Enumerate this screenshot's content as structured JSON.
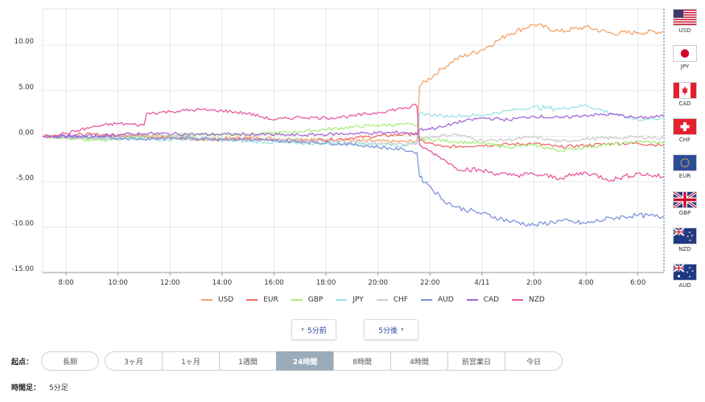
{
  "chart_data": {
    "type": "line",
    "y_ticks": [
      "10.00",
      "5.00",
      "0.00",
      "-5.00",
      "-10.00",
      "-15.00"
    ],
    "ylim": [
      -15,
      14
    ],
    "x_ticks": [
      "8:00",
      "10:00",
      "12:00",
      "14:00",
      "16:00",
      "18:00",
      "20:00",
      "22:00",
      "4/11",
      "2:00",
      "4:00",
      "6:00"
    ],
    "x_tick_hours": [
      8,
      10,
      12,
      14,
      16,
      18,
      20,
      22,
      24,
      26,
      28,
      30
    ],
    "xlim_hours": [
      7.1,
      31.0
    ],
    "grid": true,
    "legend_position": "bottom",
    "series": [
      {
        "name": "USD",
        "color": "#f4a46a",
        "points": [
          [
            7.1,
            0
          ],
          [
            9,
            -0.2
          ],
          [
            11,
            0.2
          ],
          [
            13,
            -0.3
          ],
          [
            15,
            -0.2
          ],
          [
            17,
            -0.3
          ],
          [
            19,
            -0.5
          ],
          [
            21,
            -0.6
          ],
          [
            21.5,
            -0.5
          ],
          [
            21.6,
            5.5
          ],
          [
            22.5,
            7.5
          ],
          [
            23,
            8.5
          ],
          [
            24,
            9.5
          ],
          [
            24.6,
            10.5
          ],
          [
            25,
            11.2
          ],
          [
            26,
            12.3
          ],
          [
            27,
            11.5
          ],
          [
            28,
            12.0
          ],
          [
            29,
            11.3
          ],
          [
            30,
            11.4
          ],
          [
            31,
            11.5
          ]
        ]
      },
      {
        "name": "EUR",
        "color": "#ee6b66",
        "points": [
          [
            7.1,
            0
          ],
          [
            9,
            0.2
          ],
          [
            11,
            0
          ],
          [
            13,
            -0.4
          ],
          [
            15,
            -0.3
          ],
          [
            17,
            -0.6
          ],
          [
            19,
            -0.2
          ],
          [
            21,
            0.2
          ],
          [
            21.5,
            0.3
          ],
          [
            21.6,
            -0.5
          ],
          [
            22.5,
            -1.2
          ],
          [
            24,
            -1.0
          ],
          [
            25,
            -0.9
          ],
          [
            26,
            -0.8
          ],
          [
            27,
            -1.2
          ],
          [
            28,
            -1.0
          ],
          [
            29,
            -0.8
          ],
          [
            30,
            -0.8
          ],
          [
            31,
            -1.0
          ]
        ]
      },
      {
        "name": "GBP",
        "color": "#a9ee7e",
        "points": [
          [
            7.1,
            0
          ],
          [
            9,
            -0.5
          ],
          [
            11,
            -0.1
          ],
          [
            13,
            0.2
          ],
          [
            15,
            0.2
          ],
          [
            17,
            0.5
          ],
          [
            19,
            1.0
          ],
          [
            20,
            1.2
          ],
          [
            21,
            1.3
          ],
          [
            21.5,
            1.2
          ],
          [
            21.6,
            -0.3
          ],
          [
            23,
            -0.6
          ],
          [
            24,
            -0.8
          ],
          [
            25,
            -1.2
          ],
          [
            26,
            -1.0
          ],
          [
            27,
            -1.6
          ],
          [
            28,
            -1.2
          ],
          [
            29,
            -0.9
          ],
          [
            30,
            -0.6
          ],
          [
            31,
            -0.7
          ]
        ]
      },
      {
        "name": "JPY",
        "color": "#9ee3e3",
        "points": [
          [
            7.1,
            0
          ],
          [
            9,
            -0.2
          ],
          [
            11,
            -0.4
          ],
          [
            13,
            -0.3
          ],
          [
            15,
            -0.6
          ],
          [
            17,
            -0.8
          ],
          [
            19,
            -0.8
          ],
          [
            21,
            -1.0
          ],
          [
            21.5,
            -0.8
          ],
          [
            21.6,
            2.5
          ],
          [
            22.5,
            2.2
          ],
          [
            24,
            2.3
          ],
          [
            25,
            2.8
          ],
          [
            26,
            3.2
          ],
          [
            27,
            3.0
          ],
          [
            28,
            3.4
          ],
          [
            29,
            2.5
          ],
          [
            30,
            1.8
          ],
          [
            31,
            2.0
          ]
        ]
      },
      {
        "name": "CHF",
        "color": "#cccccc",
        "points": [
          [
            7.1,
            0
          ],
          [
            9,
            -0.3
          ],
          [
            11,
            0.1
          ],
          [
            13,
            -0.2
          ],
          [
            15,
            -0.4
          ],
          [
            17,
            -0.4
          ],
          [
            19,
            -0.6
          ],
          [
            21,
            -0.9
          ],
          [
            21.5,
            -0.8
          ],
          [
            21.6,
            -0.2
          ],
          [
            23,
            0.2
          ],
          [
            24,
            -0.5
          ],
          [
            25,
            -0.4
          ],
          [
            26,
            -0.1
          ],
          [
            27,
            -0.6
          ],
          [
            28,
            -0.3
          ],
          [
            29,
            -0.2
          ],
          [
            30,
            -0.1
          ],
          [
            31,
            -0.2
          ]
        ]
      },
      {
        "name": "AUD",
        "color": "#7c95dc",
        "points": [
          [
            7.1,
            0
          ],
          [
            9,
            -0.1
          ],
          [
            11,
            -0.3
          ],
          [
            13,
            -0.2
          ],
          [
            15,
            -0.4
          ],
          [
            17,
            -0.6
          ],
          [
            19,
            -0.9
          ],
          [
            21,
            -1.5
          ],
          [
            21.5,
            -1.8
          ],
          [
            21.6,
            -4.5
          ],
          [
            22,
            -5.5
          ],
          [
            22.5,
            -7.0
          ],
          [
            23,
            -7.8
          ],
          [
            24,
            -8.5
          ],
          [
            25,
            -9.3
          ],
          [
            26,
            -9.8
          ],
          [
            27,
            -9.3
          ],
          [
            28,
            -9.6
          ],
          [
            29,
            -9.0
          ],
          [
            30,
            -8.7
          ],
          [
            31,
            -8.9
          ]
        ]
      },
      {
        "name": "CAD",
        "color": "#a568d6",
        "points": [
          [
            7.1,
            0
          ],
          [
            9,
            0
          ],
          [
            11,
            0.3
          ],
          [
            13,
            0.2
          ],
          [
            15,
            0.2
          ],
          [
            17,
            0.1
          ],
          [
            19,
            0.3
          ],
          [
            21,
            0.4
          ],
          [
            21.5,
            0.2
          ],
          [
            21.6,
            0.7
          ],
          [
            22.5,
            1.0
          ],
          [
            23,
            1.5
          ],
          [
            24,
            2.0
          ],
          [
            25,
            1.8
          ],
          [
            26,
            2.2
          ],
          [
            27,
            2.0
          ],
          [
            28,
            2.3
          ],
          [
            29,
            2.4
          ],
          [
            30,
            2.0
          ],
          [
            31,
            2.2
          ]
        ]
      },
      {
        "name": "NZD",
        "color": "#e65c9e",
        "points": [
          [
            7.1,
            0
          ],
          [
            8,
            0.3
          ],
          [
            9,
            1.0
          ],
          [
            10,
            1.4
          ],
          [
            11,
            1.2
          ],
          [
            11.1,
            2.5
          ],
          [
            12,
            2.7
          ],
          [
            13,
            2.9
          ],
          [
            14,
            2.8
          ],
          [
            15,
            2.5
          ],
          [
            16,
            1.8
          ],
          [
            17,
            2.1
          ],
          [
            18,
            2.0
          ],
          [
            19,
            2.2
          ],
          [
            20,
            2.6
          ],
          [
            21,
            3.1
          ],
          [
            21.5,
            3.3
          ],
          [
            21.6,
            -1.0
          ],
          [
            22.5,
            -2.5
          ],
          [
            23,
            -3.5
          ],
          [
            24,
            -3.8
          ],
          [
            25,
            -4.3
          ],
          [
            26,
            -4.2
          ],
          [
            27,
            -4.6
          ],
          [
            28,
            -4.0
          ],
          [
            29,
            -4.8
          ],
          [
            30,
            -4.1
          ],
          [
            31,
            -4.5
          ]
        ]
      }
    ]
  },
  "flags": [
    {
      "code": "USD",
      "type": "usd"
    },
    {
      "code": "JPY",
      "type": "jpy"
    },
    {
      "code": "CAD",
      "type": "cad"
    },
    {
      "code": "CHF",
      "type": "chf"
    },
    {
      "code": "EUR",
      "type": "eur"
    },
    {
      "code": "GBP",
      "type": "gbp"
    },
    {
      "code": "NZD",
      "type": "nzd"
    },
    {
      "code": "AUD",
      "type": "aud"
    }
  ],
  "nav": {
    "prev_label": "5分前",
    "next_label": "5分後"
  },
  "start_point": {
    "label": "起点：",
    "long_label": "長期",
    "options": [
      "3ヶ月",
      "1ヶ月",
      "1週間",
      "24時間",
      "8時間",
      "4時間",
      "前営業日",
      "今日"
    ],
    "active": "24時間"
  },
  "timeframe": {
    "label": "時間足：",
    "value": "5分足"
  }
}
